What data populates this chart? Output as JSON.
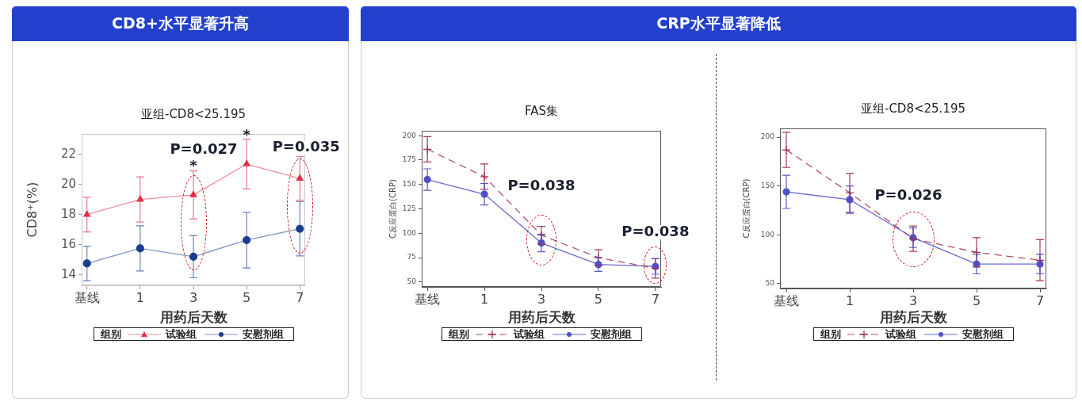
{
  "chart_data": [
    {
      "type": "line",
      "title": "CD8+水平显著升高",
      "subtitle": "亚组-CD8<25.195",
      "xlabel": "用药后天数",
      "ylabel": "CD8⁺(%)",
      "legend_title": "组别",
      "legend": "bottom",
      "categories": [
        "基线",
        "1",
        "3",
        "5",
        "7"
      ],
      "series": [
        {
          "name": "试验组",
          "color": "#e0304a",
          "marker": "triangle",
          "line_style": "solid",
          "values": [
            18.0,
            19.0,
            19.3,
            21.35,
            20.4
          ],
          "errors": [
            1.15,
            1.5,
            1.6,
            1.65,
            1.45
          ]
        },
        {
          "name": "安慰剂组",
          "color": "#1c3c8c",
          "marker": "circle",
          "line_style": "solid",
          "values": [
            14.75,
            15.75,
            15.2,
            16.3,
            17.05
          ],
          "errors": [
            1.15,
            1.5,
            1.4,
            1.85,
            1.8
          ]
        }
      ],
      "ylim": [
        13.3,
        23.35
      ],
      "yticks": [
        14,
        16,
        18,
        20,
        22
      ],
      "annotations": [
        "P=0.027",
        "*",
        "*",
        "P=0.035"
      ]
    },
    {
      "type": "line",
      "title": "CRP水平显著降低",
      "subtitle": "FAS集",
      "xlabel": "用药后天数",
      "ylabel": "C反应蛋白(CRP)",
      "legend_title": "组别",
      "legend": "bottom",
      "categories": [
        "基线",
        "1",
        "3",
        "5",
        "7"
      ],
      "series": [
        {
          "name": "试验组",
          "color": "#a03050",
          "marker": "cross",
          "line_style": "dashed",
          "values": [
            186,
            158,
            98,
            75,
            64
          ],
          "errors": [
            13,
            13,
            9,
            8,
            10
          ]
        },
        {
          "name": "安慰剂组",
          "color": "#5050c8",
          "marker": "circle",
          "line_style": "solid",
          "values": [
            155,
            140,
            90,
            68,
            66
          ],
          "errors": [
            11,
            11,
            9,
            7,
            8
          ]
        }
      ],
      "ylim": [
        45,
        205
      ],
      "yticks": [
        50,
        75,
        100,
        125,
        150,
        175,
        200
      ],
      "annotations": [
        "P=0.038",
        "P=0.038"
      ]
    },
    {
      "type": "line",
      "subtitle": "亚组-CD8<25.195",
      "xlabel": "用药后天数",
      "ylabel": "C反应蛋白(CRP)",
      "legend_title": "组别",
      "legend": "bottom",
      "categories": [
        "基线",
        "1",
        "3",
        "5",
        "7"
      ],
      "series": [
        {
          "name": "试验组",
          "color": "#a03050",
          "marker": "cross",
          "line_style": "dashed",
          "values": [
            187,
            143,
            96,
            82,
            74
          ],
          "errors": [
            18,
            20,
            13,
            15,
            21
          ]
        },
        {
          "name": "安慰剂组",
          "color": "#5050c8",
          "marker": "circle",
          "line_style": "solid",
          "values": [
            144,
            136,
            97,
            70,
            70
          ],
          "errors": [
            17,
            14,
            10,
            10,
            10
          ]
        }
      ],
      "ylim": [
        45,
        209
      ],
      "yticks": [
        50,
        100,
        150,
        200
      ],
      "annotations": [
        "P=0.026"
      ]
    }
  ]
}
